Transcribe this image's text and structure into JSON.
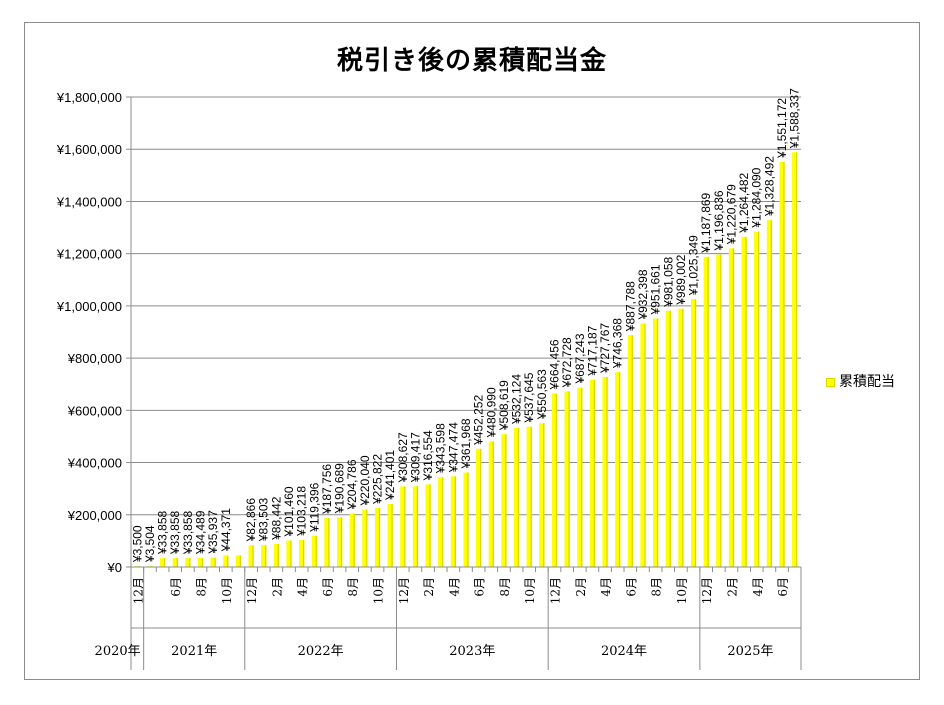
{
  "chart_data": {
    "type": "bar",
    "title": "税引き後の累積配当金",
    "ylim": [
      0,
      1800000
    ],
    "yticks": [
      "¥0",
      "¥200,000",
      "¥400,000",
      "¥600,000",
      "¥800,000",
      "¥1,000,000",
      "¥1,200,000",
      "¥1,400,000",
      "¥1,600,000",
      "¥1,800,000"
    ],
    "grid": true,
    "legend_position": "right",
    "series": [
      {
        "name": "累積配当",
        "color": "#ffff00"
      }
    ],
    "points": [
      {
        "month": "12月",
        "value": 3500,
        "label": "¥3,500"
      },
      {
        "month": "",
        "value": 3504,
        "label": "¥3,504"
      },
      {
        "month": "",
        "value": 33858,
        "label": "¥33,858"
      },
      {
        "month": "6月",
        "value": 33858,
        "label": "¥33,858"
      },
      {
        "month": "",
        "value": 33858,
        "label": "¥33,858"
      },
      {
        "month": "8月",
        "value": 34489,
        "label": "¥34,489"
      },
      {
        "month": "",
        "value": 35937,
        "label": "¥35,937"
      },
      {
        "month": "10月",
        "value": 44371,
        "label": "¥44,371"
      },
      {
        "month": "",
        "value": 44371,
        "label": ""
      },
      {
        "month": "12月",
        "value": 82866,
        "label": "¥82,866"
      },
      {
        "month": "",
        "value": 83503,
        "label": "¥83,503"
      },
      {
        "month": "2月",
        "value": 88442,
        "label": "¥88,442"
      },
      {
        "month": "",
        "value": 101460,
        "label": "¥101,460"
      },
      {
        "month": "4月",
        "value": 103218,
        "label": "¥103,218"
      },
      {
        "month": "",
        "value": 119396,
        "label": "¥119,396"
      },
      {
        "month": "6月",
        "value": 187756,
        "label": "¥187,756"
      },
      {
        "month": "",
        "value": 190689,
        "label": "¥190,689"
      },
      {
        "month": "8月",
        "value": 204786,
        "label": "¥204,786"
      },
      {
        "month": "",
        "value": 220040,
        "label": "¥220,040"
      },
      {
        "month": "10月",
        "value": 225822,
        "label": "¥225,822"
      },
      {
        "month": "",
        "value": 241401,
        "label": "¥241,401"
      },
      {
        "month": "12月",
        "value": 308627,
        "label": "¥308,627"
      },
      {
        "month": "",
        "value": 309417,
        "label": "¥309,417"
      },
      {
        "month": "2月",
        "value": 316554,
        "label": "¥316,554"
      },
      {
        "month": "",
        "value": 343598,
        "label": "¥343,598"
      },
      {
        "month": "4月",
        "value": 347474,
        "label": "¥347,474"
      },
      {
        "month": "",
        "value": 361968,
        "label": "¥361,968"
      },
      {
        "month": "6月",
        "value": 452252,
        "label": "¥452,252"
      },
      {
        "month": "",
        "value": 480990,
        "label": "¥480,990"
      },
      {
        "month": "8月",
        "value": 508619,
        "label": "¥508,619"
      },
      {
        "month": "",
        "value": 532124,
        "label": "¥532,124"
      },
      {
        "month": "10月",
        "value": 537645,
        "label": "¥537,645"
      },
      {
        "month": "",
        "value": 550563,
        "label": "¥550,563"
      },
      {
        "month": "12月",
        "value": 664456,
        "label": "¥664,456"
      },
      {
        "month": "",
        "value": 672728,
        "label": "¥672,728"
      },
      {
        "month": "2月",
        "value": 687243,
        "label": "¥687,243"
      },
      {
        "month": "",
        "value": 717187,
        "label": "¥717,187"
      },
      {
        "month": "4月",
        "value": 727767,
        "label": "¥727,767"
      },
      {
        "month": "",
        "value": 746368,
        "label": "¥746,368"
      },
      {
        "month": "6月",
        "value": 887788,
        "label": "¥887,788"
      },
      {
        "month": "",
        "value": 932398,
        "label": "¥932,398"
      },
      {
        "month": "8月",
        "value": 951661,
        "label": "¥951,661"
      },
      {
        "month": "",
        "value": 981058,
        "label": "¥981,058"
      },
      {
        "month": "10月",
        "value": 989002,
        "label": "¥989,002"
      },
      {
        "month": "",
        "value": 1025349,
        "label": "¥1,025,349"
      },
      {
        "month": "12月",
        "value": 1187869,
        "label": "¥1,187,869"
      },
      {
        "month": "",
        "value": 1196836,
        "label": "¥1,196,836"
      },
      {
        "month": "2月",
        "value": 1220679,
        "label": "¥1,220,679"
      },
      {
        "month": "",
        "value": 1264482,
        "label": "¥1,264,482"
      },
      {
        "month": "4月",
        "value": 1284090,
        "label": "¥1,284,090"
      },
      {
        "month": "",
        "value": 1328492,
        "label": "¥1,328,492"
      },
      {
        "month": "6月",
        "value": 1551172,
        "label": "¥1,551,172"
      },
      {
        "month": "",
        "value": 1588337,
        "label": "¥1,588,337"
      }
    ],
    "years": [
      {
        "label": "2020年",
        "start": 0,
        "end": 1
      },
      {
        "label": "2021年",
        "start": 1,
        "end": 9
      },
      {
        "label": "2022年",
        "start": 9,
        "end": 21
      },
      {
        "label": "2023年",
        "start": 21,
        "end": 33
      },
      {
        "label": "2024年",
        "start": 33,
        "end": 45
      },
      {
        "label": "2025年",
        "start": 45,
        "end": 53
      }
    ]
  }
}
